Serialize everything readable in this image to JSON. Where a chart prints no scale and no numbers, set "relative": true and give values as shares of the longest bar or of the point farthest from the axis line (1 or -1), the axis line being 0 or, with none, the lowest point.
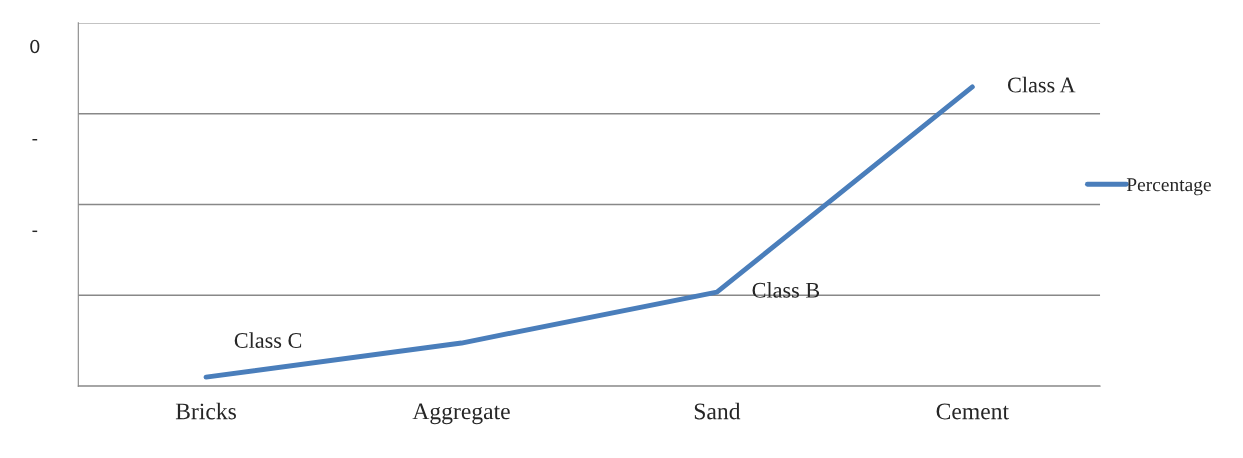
{
  "chart_data": {
    "type": "line",
    "relative": true,
    "categories": [
      "Bricks",
      "Aggregate",
      "Sand",
      "Cement"
    ],
    "series": [
      {
        "name": "Percentage",
        "color": "#4a7ebb",
        "values": [
          0.03,
          0.144,
          0.314,
          1
        ]
      }
    ],
    "annotations": [
      {
        "text": "Class C",
        "x": "Bricks",
        "y": 0.03
      },
      {
        "text": "Class B",
        "x": "Sand",
        "y": 0.314
      },
      {
        "text": "Class A",
        "x": "Cement",
        "y": 1
      },
      "0",
      "-",
      "-"
    ],
    "grid": "y",
    "legend": "right",
    "marker": "none",
    "line_style": "solid"
  }
}
